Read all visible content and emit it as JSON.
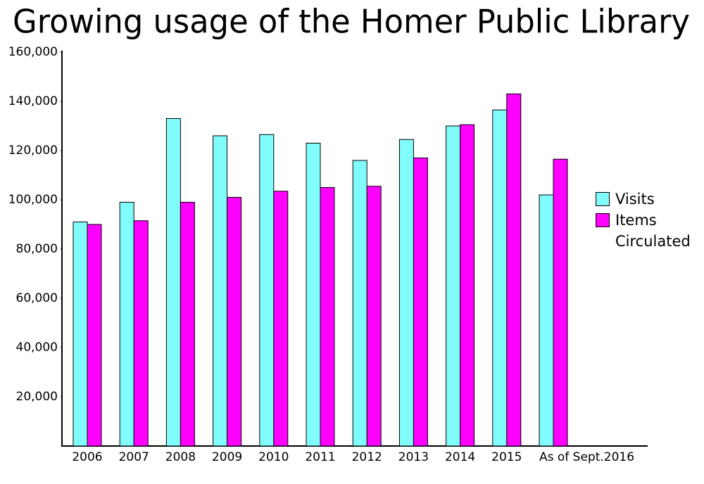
{
  "chart_data": {
    "type": "bar",
    "title": "Growing usage of the Homer Public Library",
    "categories": [
      "2006",
      "2007",
      "2008",
      "2009",
      "2010",
      "2011",
      "2012",
      "2013",
      "2014",
      "2015",
      "As of Sept.2016"
    ],
    "series": [
      {
        "name": "Visits",
        "color": "#80fcfc",
        "values": [
          91000,
          99000,
          133000,
          126000,
          126500,
          123000,
          116000,
          124500,
          130000,
          136500,
          102000
        ]
      },
      {
        "name": "Items Circulated",
        "color": "#ff00ff",
        "values": [
          90000,
          91500,
          99000,
          101000,
          103500,
          105000,
          105500,
          117000,
          130500,
          143000,
          116500
        ]
      }
    ],
    "ylim": [
      0,
      160000
    ],
    "yticks": [
      {
        "value": 20000,
        "label": "20,000"
      },
      {
        "value": 40000,
        "label": "40,000"
      },
      {
        "value": 60000,
        "label": "60,000"
      },
      {
        "value": 80000,
        "label": "80,000"
      },
      {
        "value": 100000,
        "label": "100,000"
      },
      {
        "value": 120000,
        "label": "120,000"
      },
      {
        "value": 140000,
        "label": "140,000"
      },
      {
        "value": 160000,
        "label": "160,000"
      }
    ],
    "legend": "right"
  }
}
